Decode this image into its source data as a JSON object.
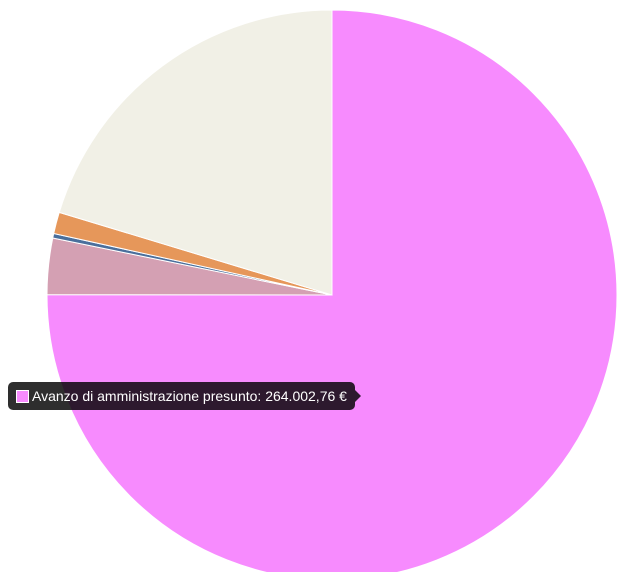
{
  "chart_data": {
    "type": "pie",
    "title": "",
    "slices": [
      {
        "label": "Avanzo di amministrazione presunto",
        "value": 264002.76,
        "color": "#f78bfe"
      },
      {
        "label": "",
        "value": 11200,
        "color": "#d4a0b3"
      },
      {
        "label": "",
        "value": 900,
        "color": "#4a6f9c"
      },
      {
        "label": "",
        "value": 4300,
        "color": "#e6975a"
      },
      {
        "label": "",
        "value": 71500,
        "color": "#f1f0e6"
      }
    ],
    "legend": "none"
  },
  "tooltip": {
    "text": "Avanzo di amministrazione presunto: 264.002,76 €",
    "swatch_color": "#f78bfe"
  }
}
